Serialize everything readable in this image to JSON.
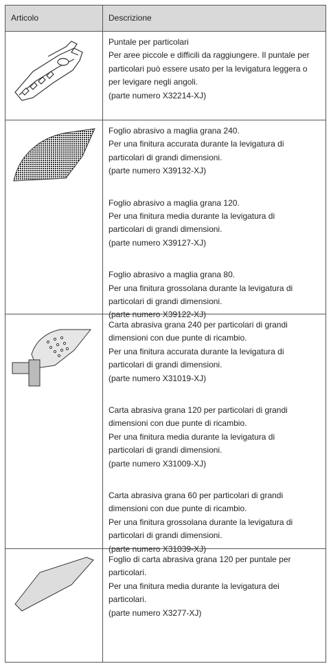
{
  "table": {
    "header": [
      "Articolo",
      "Descrizione"
    ],
    "rows": [
      {
        "paragraphs": [
          [
            "Puntale per particolari",
            "Per aree piccole e difficili da raggiungere. Il puntale per",
            "particolari può essere usato per la levigatura leggera o",
            "per levigare negli angoli.",
            "(parte numero X32214-XJ)"
          ]
        ]
      },
      {
        "paragraphs": [
          [
            "Foglio abrasivo a maglia grana 240.",
            "Per una finitura accurata durante la levigatura di",
            "particolari di grandi dimensioni.",
            "(parte numero X39132-XJ)"
          ],
          [
            "Foglio abrasivo a maglia grana 120.",
            "Per una finitura media durante la levigatura di",
            "particolari di grandi dimensioni.",
            "(parte numero X39127-XJ)"
          ],
          [
            "Foglio abrasivo a maglia grana 80.",
            "Per una finitura grossolana durante la levigatura di",
            "particolari di grandi dimensioni.",
            "(parte numero X39122-XJ)"
          ]
        ]
      },
      {
        "paragraphs": [
          [
            "Carta abrasiva grana 240 per particolari di grandi",
            "dimensioni con due punte di ricambio.",
            "Per una finitura accurata durante la levigatura di",
            "particolari di grandi dimensioni.",
            "(parte numero X31019-XJ)"
          ],
          [
            "Carta abrasiva grana 120 per particolari di grandi",
            "dimensioni con due punte di ricambio.",
            "Per una finitura media durante la levigatura di",
            "particolari di grandi dimensioni.",
            "(parte numero X31009-XJ)"
          ],
          [
            "Carta abrasiva grana 60 per particolari di grandi",
            "dimensioni con due punte di ricambio.",
            "Per una finitura grossolana durante la levigatura di",
            "particolari di grandi dimensioni.",
            "(parte numero X31039-XJ)"
          ]
        ]
      },
      {
        "paragraphs": [
          [
            "Foglio di carta abrasiva grana 120 per puntale per",
            "particolari.",
            "Per una finitura media durante la levigatura dei",
            "particolari.",
            "(parte numero X3277-XJ)"
          ]
        ]
      }
    ]
  }
}
